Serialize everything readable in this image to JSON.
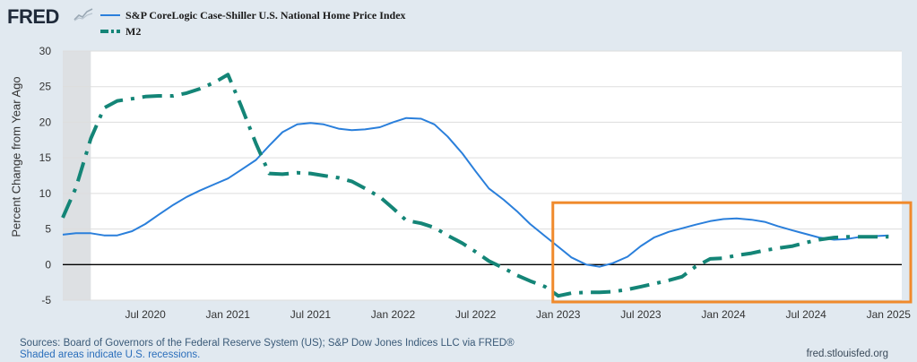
{
  "header": {
    "logo_text": "FRED",
    "legend": [
      {
        "label": "S&P CoreLogic Case-Shiller U.S. National Home Price Index",
        "color": "#2a7fdb",
        "style": "solid"
      },
      {
        "label": "M2",
        "color": "#148577",
        "style": "dashdot"
      }
    ]
  },
  "footer": {
    "sources": "Sources: Board of Governors of the Federal Reserve System (US); S&P Dow Jones Indices LLC via FRED®",
    "recession_note": "Shaded areas indicate U.S. recessions.",
    "site": "fred.stlouisfed.org"
  },
  "colors": {
    "background": "#e1e9f0",
    "plot_background": "#ffffff",
    "gridline": "#dddddd",
    "recession": "#dde0e3",
    "zero_line": "#000000",
    "highlight_box": "#f08a2c"
  },
  "chart_data": {
    "type": "line",
    "ylabel": "Percent Change from Year Ago",
    "xlabel": "",
    "ylim": [
      -5,
      30
    ],
    "yticks": [
      -5,
      0,
      5,
      10,
      15,
      20,
      25,
      30
    ],
    "xlim": [
      2020.0,
      2025.08
    ],
    "xticks": [
      {
        "label": "Jul 2020",
        "x": 2020.5
      },
      {
        "label": "Jan 2021",
        "x": 2021.0
      },
      {
        "label": "Jul 2021",
        "x": 2021.5
      },
      {
        "label": "Jan 2022",
        "x": 2022.0
      },
      {
        "label": "Jul 2022",
        "x": 2022.5
      },
      {
        "label": "Jan 2023",
        "x": 2023.0
      },
      {
        "label": "Jul 2023",
        "x": 2023.5
      },
      {
        "label": "Jan 2024",
        "x": 2024.0
      },
      {
        "label": "Jul 2024",
        "x": 2024.5
      },
      {
        "label": "Jan 2025",
        "x": 2025.0
      }
    ],
    "recession": [
      2020.0,
      2020.17
    ],
    "highlight_range": {
      "x": [
        2023.0,
        2025.08
      ],
      "y": [
        -5,
        8.7
      ]
    },
    "series": [
      {
        "name": "S&P CoreLogic Case-Shiller U.S. National Home Price Index",
        "x": [
          2020.0,
          2020.08,
          2020.17,
          2020.25,
          2020.33,
          2020.42,
          2020.5,
          2020.58,
          2020.67,
          2020.75,
          2020.83,
          2020.92,
          2021.0,
          2021.08,
          2021.17,
          2021.25,
          2021.33,
          2021.42,
          2021.5,
          2021.58,
          2021.67,
          2021.75,
          2021.83,
          2021.92,
          2022.0,
          2022.08,
          2022.17,
          2022.25,
          2022.33,
          2022.42,
          2022.5,
          2022.58,
          2022.67,
          2022.75,
          2022.83,
          2022.92,
          2023.0,
          2023.08,
          2023.17,
          2023.25,
          2023.33,
          2023.42,
          2023.5,
          2023.58,
          2023.67,
          2023.75,
          2023.83,
          2023.92,
          2024.0,
          2024.08,
          2024.17,
          2024.25,
          2024.33,
          2024.42,
          2024.5,
          2024.58,
          2024.67,
          2024.75,
          2024.83,
          2024.92,
          2025.0
        ],
        "values": [
          4.2,
          4.4,
          4.4,
          4.1,
          4.1,
          4.7,
          5.7,
          7.0,
          8.4,
          9.5,
          10.4,
          11.3,
          12.1,
          13.3,
          14.7,
          16.7,
          18.6,
          19.7,
          19.9,
          19.7,
          19.1,
          18.9,
          19.0,
          19.3,
          20.0,
          20.6,
          20.5,
          19.7,
          18.0,
          15.6,
          13.1,
          10.7,
          9.1,
          7.5,
          5.7,
          4.0,
          2.5,
          1.0,
          0.0,
          -0.3,
          0.2,
          1.1,
          2.6,
          3.8,
          4.6,
          5.1,
          5.6,
          6.1,
          6.4,
          6.5,
          6.3,
          6.0,
          5.4,
          4.8,
          4.3,
          3.8,
          3.5,
          3.6,
          3.9,
          4.0,
          4.1
        ]
      },
      {
        "name": "M2",
        "x": [
          2020.0,
          2020.08,
          2020.17,
          2020.25,
          2020.33,
          2020.42,
          2020.5,
          2020.58,
          2020.67,
          2020.75,
          2020.83,
          2020.92,
          2021.0,
          2021.08,
          2021.17,
          2021.25,
          2021.33,
          2021.42,
          2021.5,
          2021.58,
          2021.67,
          2021.75,
          2021.83,
          2021.92,
          2022.0,
          2022.08,
          2022.17,
          2022.25,
          2022.33,
          2022.42,
          2022.5,
          2022.58,
          2022.67,
          2022.75,
          2022.83,
          2022.92,
          2023.0,
          2023.08,
          2023.17,
          2023.25,
          2023.33,
          2023.42,
          2023.5,
          2023.58,
          2023.67,
          2023.75,
          2023.83,
          2023.92,
          2024.0,
          2024.08,
          2024.17,
          2024.25,
          2024.33,
          2024.42,
          2024.5,
          2024.58,
          2024.67,
          2024.75,
          2024.83,
          2024.92,
          2025.0
        ],
        "values": [
          6.6,
          10.8,
          17.7,
          22.0,
          23.0,
          23.3,
          23.6,
          23.7,
          23.7,
          24.1,
          24.7,
          25.6,
          26.7,
          22.3,
          17.0,
          12.8,
          12.7,
          12.9,
          12.8,
          12.5,
          12.2,
          11.7,
          10.7,
          9.5,
          7.9,
          6.2,
          5.8,
          5.2,
          4.1,
          3.0,
          1.8,
          0.5,
          -0.5,
          -1.5,
          -2.3,
          -3.1,
          -4.4,
          -4.0,
          -3.9,
          -3.9,
          -3.8,
          -3.5,
          -3.1,
          -2.7,
          -2.2,
          -1.7,
          -0.3,
          0.8,
          0.9,
          1.3,
          1.6,
          2.0,
          2.3,
          2.6,
          3.1,
          3.5,
          3.8,
          3.9,
          3.9,
          3.9,
          3.9
        ]
      }
    ]
  }
}
